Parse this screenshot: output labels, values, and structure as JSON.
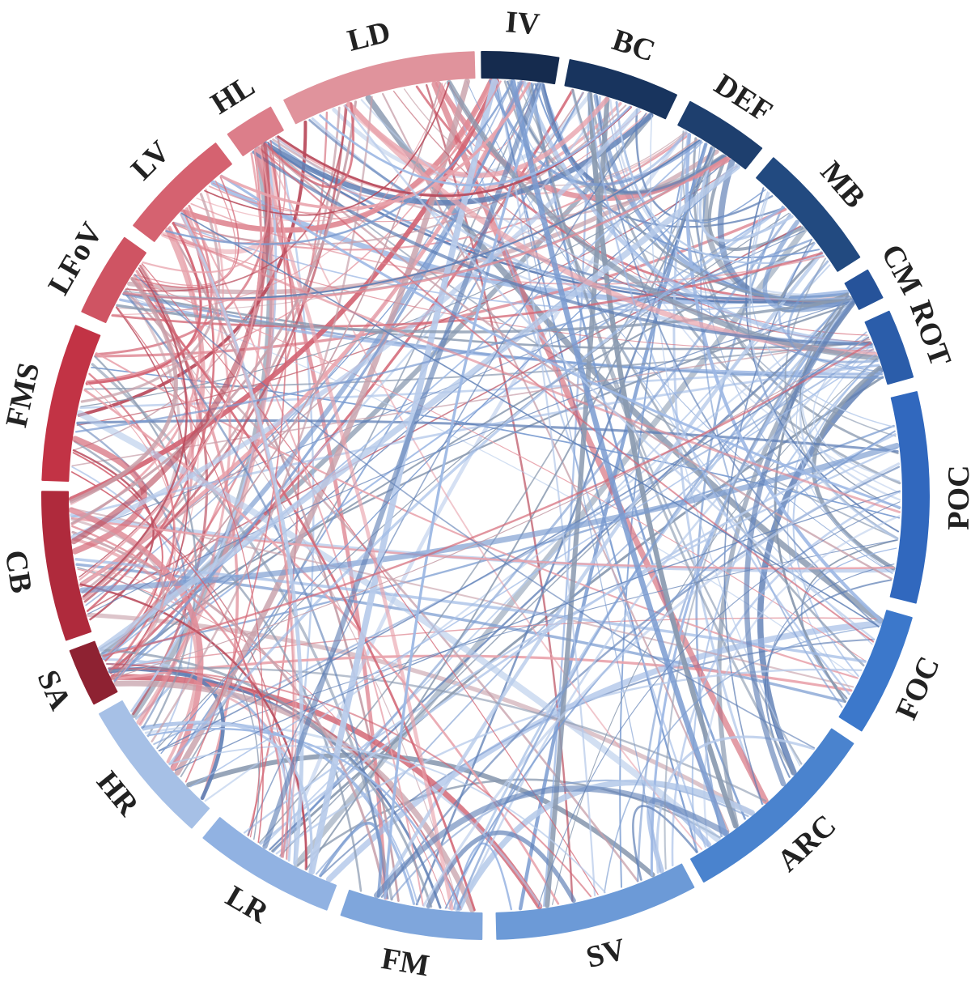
{
  "diagram": {
    "type": "chord",
    "segments": [
      {
        "id": "IV",
        "label": "IV",
        "color": "#152B4E",
        "group": "blue"
      },
      {
        "id": "BC",
        "label": "BC",
        "color": "#18345E",
        "group": "blue"
      },
      {
        "id": "DEF",
        "label": "DEF",
        "color": "#1E3F6E",
        "group": "blue"
      },
      {
        "id": "MB",
        "label": "MB",
        "color": "#224A80",
        "group": "blue"
      },
      {
        "id": "CM",
        "label": "CM",
        "color": "#26539A",
        "group": "blue"
      },
      {
        "id": "ROT",
        "label": "ROT",
        "color": "#2B5DAA",
        "group": "blue"
      },
      {
        "id": "POC",
        "label": "POC",
        "color": "#3168BE",
        "group": "blue"
      },
      {
        "id": "FOC",
        "label": "FOC",
        "color": "#3C78CB",
        "group": "blue"
      },
      {
        "id": "ARC",
        "label": "ARC",
        "color": "#4A83CE",
        "group": "blue"
      },
      {
        "id": "SV",
        "label": "SV",
        "color": "#6C9AD7",
        "group": "blue"
      },
      {
        "id": "FM",
        "label": "FM",
        "color": "#7FA6DC",
        "group": "blue"
      },
      {
        "id": "LR",
        "label": "LR",
        "color": "#91B2E2",
        "group": "blue"
      },
      {
        "id": "HR",
        "label": "HR",
        "color": "#A6C0E6",
        "group": "blue"
      },
      {
        "id": "SA",
        "label": "SA",
        "color": "#8E2232",
        "group": "red"
      },
      {
        "id": "CB",
        "label": "CB",
        "color": "#AF2A3C",
        "group": "red"
      },
      {
        "id": "FMS",
        "label": "FMS",
        "color": "#C23345",
        "group": "red"
      },
      {
        "id": "LFoV",
        "label": "LFoV",
        "color": "#CF5463",
        "group": "red"
      },
      {
        "id": "LV",
        "label": "LV",
        "color": "#D56270",
        "group": "red"
      },
      {
        "id": "HL",
        "label": "HL",
        "color": "#DC7E8A",
        "group": "red"
      },
      {
        "id": "LD",
        "label": "LD",
        "color": "#E0939C",
        "group": "red"
      }
    ]
  }
}
